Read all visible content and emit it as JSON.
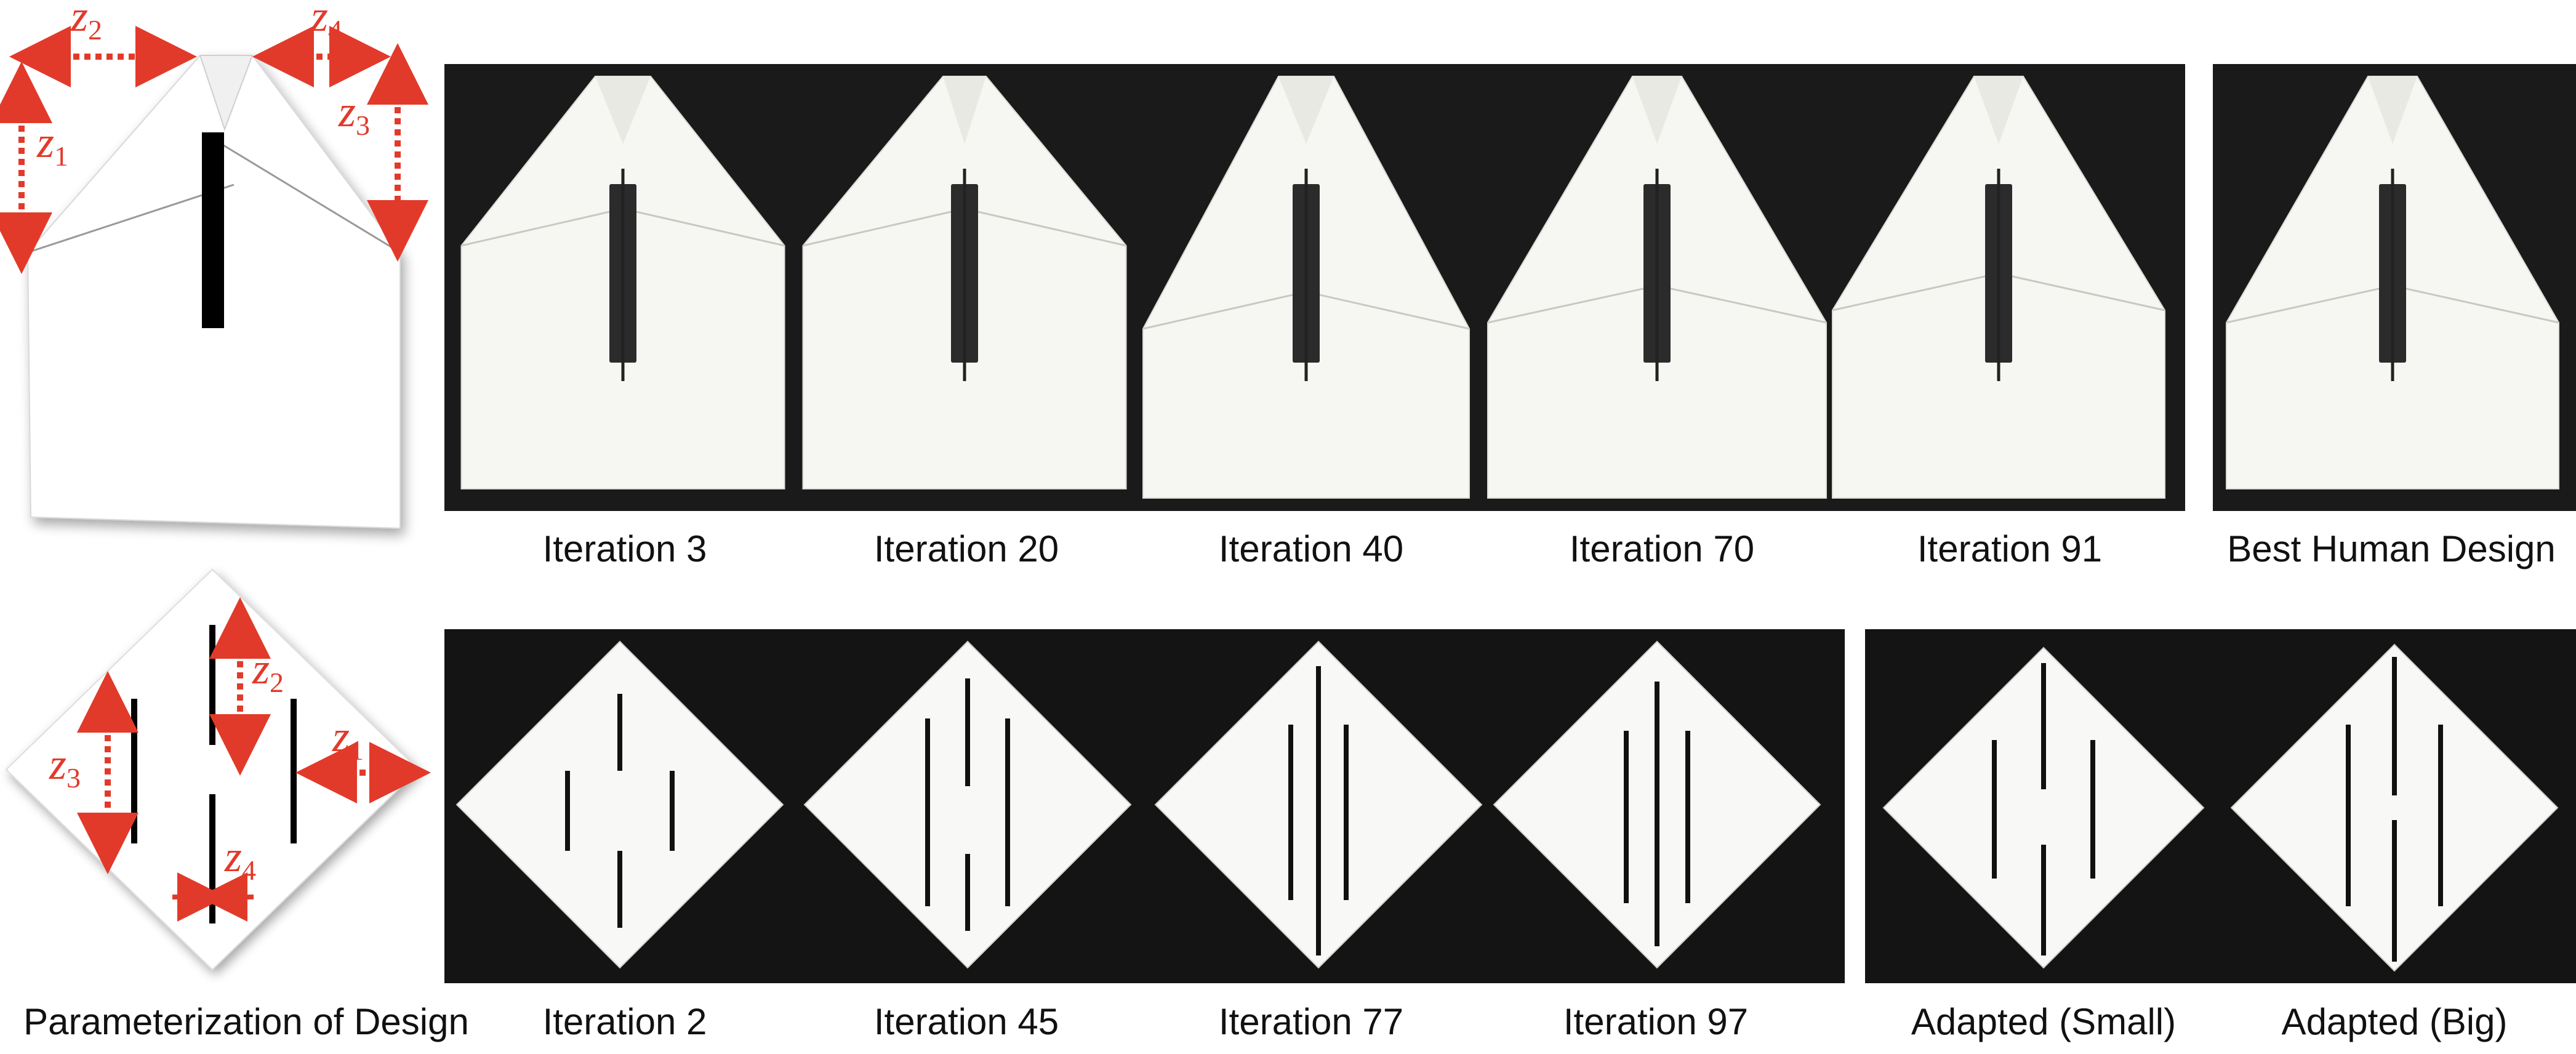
{
  "figure": {
    "row1": {
      "items": [
        {
          "label": "Iteration 3"
        },
        {
          "label": "Iteration 20"
        },
        {
          "label": "Iteration 40"
        },
        {
          "label": "Iteration 70"
        },
        {
          "label": "Iteration 91"
        },
        {
          "label": "Best Human Design"
        }
      ],
      "param_labels": [
        {
          "letter": "z",
          "sub": "1"
        },
        {
          "letter": "z",
          "sub": "2"
        },
        {
          "letter": "z",
          "sub": "3"
        },
        {
          "letter": "z",
          "sub": "4"
        }
      ]
    },
    "row2": {
      "parameterization_caption": "Parameterization of Design",
      "items": [
        {
          "label": "Iteration 2"
        },
        {
          "label": "Iteration 45"
        },
        {
          "label": "Iteration 77"
        },
        {
          "label": "Iteration 97"
        },
        {
          "label": "Adapted (Small)"
        },
        {
          "label": "Adapted (Big)"
        }
      ],
      "param_labels": [
        {
          "letter": "z",
          "sub": "1"
        },
        {
          "letter": "z",
          "sub": "2"
        },
        {
          "letter": "z",
          "sub": "3"
        },
        {
          "letter": "z",
          "sub": "4"
        }
      ]
    },
    "colors": {
      "arrow": "#e23a2a",
      "panel_bg": "#1a1a1a",
      "paper": "#f4f4f2",
      "slit": "#111111"
    }
  }
}
